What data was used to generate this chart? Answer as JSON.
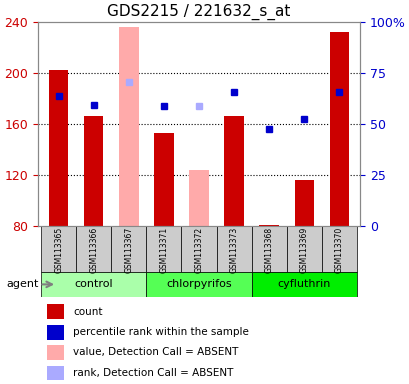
{
  "title": "GDS2215 / 221632_s_at",
  "samples": [
    "GSM113365",
    "GSM113366",
    "GSM113367",
    "GSM113371",
    "GSM113372",
    "GSM113373",
    "GSM113368",
    "GSM113369",
    "GSM113370"
  ],
  "groups": [
    {
      "name": "control",
      "color": "#aaffaa",
      "samples": [
        0,
        1,
        2
      ]
    },
    {
      "name": "chlorpyrifos",
      "color": "#55ff55",
      "samples": [
        3,
        4,
        5
      ]
    },
    {
      "name": "cyfluthrin",
      "color": "#00ee00",
      "samples": [
        6,
        7,
        8
      ]
    }
  ],
  "bar_values": [
    202,
    166,
    null,
    153,
    null,
    166,
    81,
    116,
    232
  ],
  "bar_absent_values": [
    null,
    null,
    236,
    null,
    124,
    null,
    null,
    null,
    null
  ],
  "bar_colors_present": "#cc0000",
  "bar_colors_absent": "#ffaaaa",
  "dot_values": [
    182,
    175,
    193,
    174,
    174,
    185,
    156,
    164,
    185
  ],
  "dot_absent": [
    false,
    false,
    true,
    false,
    true,
    false,
    false,
    false,
    false
  ],
  "dot_color_present": "#0000cc",
  "dot_color_absent": "#aaaaff",
  "ylim": [
    80,
    240
  ],
  "yticks": [
    80,
    120,
    160,
    200,
    240
  ],
  "right_yticks": [
    0,
    25,
    50,
    75,
    100
  ],
  "right_yticklabels": [
    "0",
    "25",
    "50",
    "75",
    "100%"
  ],
  "left_color": "#cc0000",
  "right_color": "#0000cc",
  "agent_label": "agent",
  "legend_items": [
    {
      "color": "#cc0000",
      "label": "count"
    },
    {
      "color": "#0000cc",
      "label": "percentile rank within the sample"
    },
    {
      "color": "#ffaaaa",
      "label": "value, Detection Call = ABSENT"
    },
    {
      "color": "#aaaaff",
      "label": "rank, Detection Call = ABSENT"
    }
  ],
  "bg_color": "#ffffff",
  "plot_bg": "#ffffff",
  "figsize": [
    4.1,
    3.84
  ],
  "dpi": 100
}
